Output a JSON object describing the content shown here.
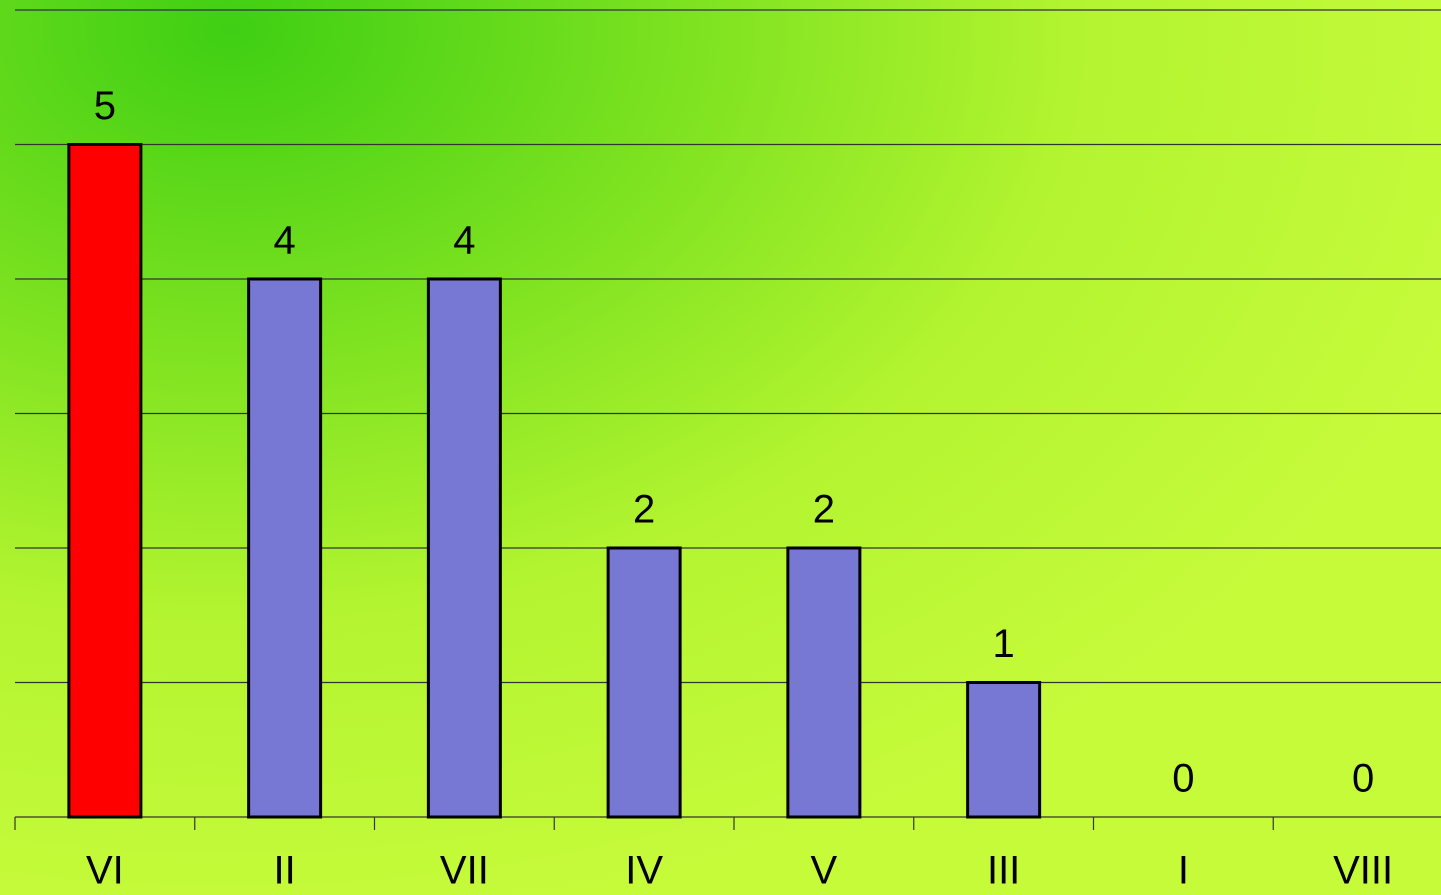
{
  "chart_data": {
    "type": "bar",
    "categories": [
      "VI",
      "II",
      "VII",
      "IV",
      "V",
      "III",
      "I",
      "VIII"
    ],
    "values": [
      5,
      4,
      4,
      2,
      2,
      1,
      0,
      0
    ],
    "colors": [
      "#ff0000",
      "#7777d4",
      "#7777d4",
      "#7777d4",
      "#7777d4",
      "#7777d4",
      "#7777d4",
      "#7777d4"
    ],
    "ylim": [
      0,
      6
    ],
    "yticks": [
      0,
      1,
      2,
      3,
      4,
      5,
      6
    ],
    "grid": true
  }
}
